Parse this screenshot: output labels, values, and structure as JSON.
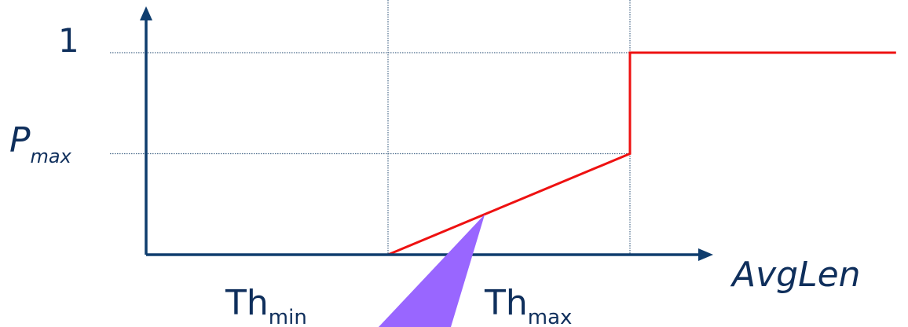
{
  "chart_data": {
    "type": "line",
    "title": "",
    "xlabel": "AvgLen",
    "ylabel": "",
    "x_ticks": [
      {
        "name": "thmin",
        "base": "Th",
        "sub": "min",
        "value": 1
      },
      {
        "name": "thmax",
        "base": "Th",
        "sub": "max",
        "value": 2
      }
    ],
    "y_ticks": [
      {
        "name": "one",
        "base": "1",
        "sub": "",
        "value": 1
      },
      {
        "name": "pmax",
        "base": "P",
        "sub": "max",
        "value": 0.5
      }
    ],
    "xlim": [
      0,
      3.1
    ],
    "ylim": [
      0,
      1.1
    ],
    "grid": true,
    "series": [
      {
        "color": "#ee1111",
        "points": [
          [
            0,
            0
          ],
          [
            1,
            0
          ],
          [
            2,
            0.5
          ],
          [
            2,
            1
          ],
          [
            3.1,
            1
          ]
        ]
      }
    ],
    "colors": {
      "axis": "#0f3d6e",
      "grid": "#4a6a8a",
      "line": "#ee1111",
      "pointer": "#9966ff",
      "text": "#0f2f5c"
    }
  }
}
